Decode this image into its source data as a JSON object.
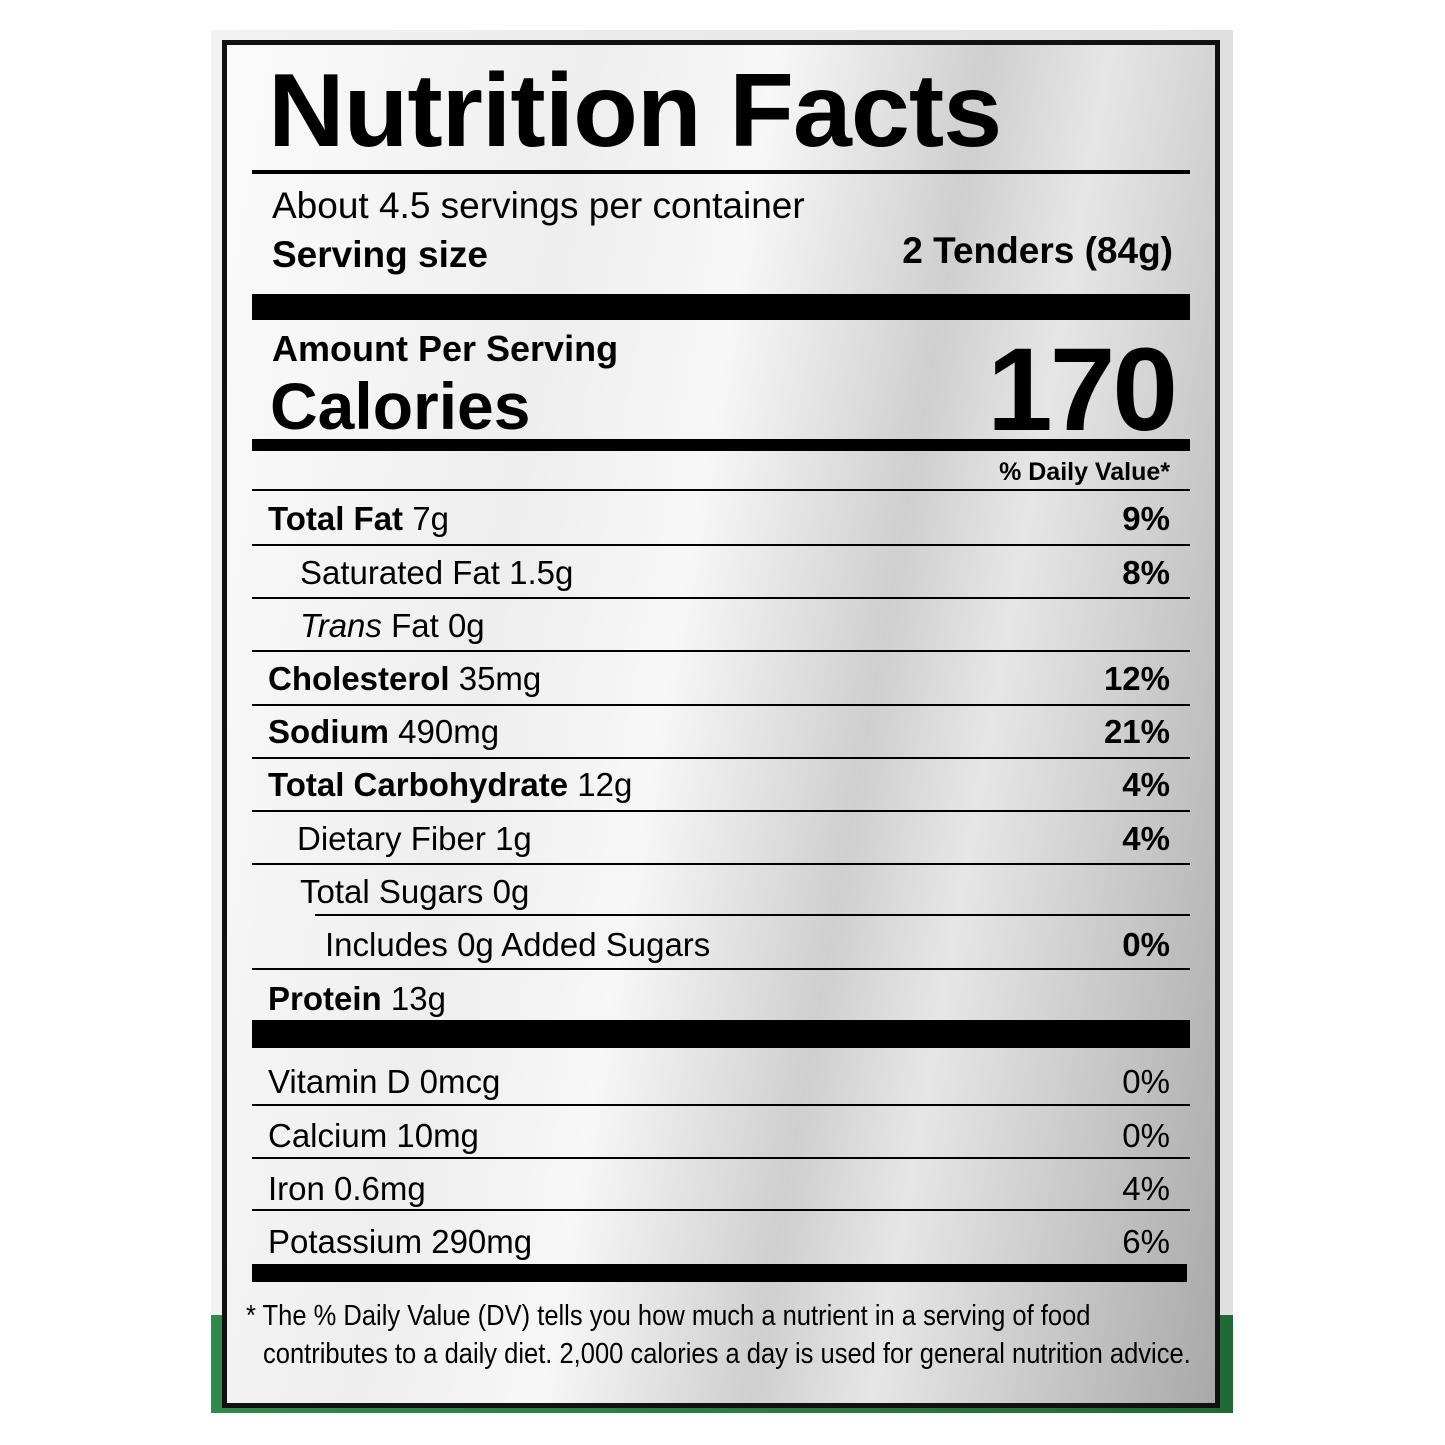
{
  "label": {
    "title": "Nutrition Facts",
    "servings_per_container": "About 4.5 servings per container",
    "serving_size_label": "Serving size",
    "serving_size_value": "2 Tenders (84g)",
    "amount_per_serving": "Amount Per Serving",
    "calories_label": "Calories",
    "calories_value": "170",
    "daily_value_header": "% Daily Value*",
    "nutrients": [
      {
        "name": "Total Fat",
        "amount": "7g",
        "dv": "9%"
      },
      {
        "name": "Saturated Fat",
        "amount": "1.5g",
        "dv": "8%"
      },
      {
        "name_italic": "Trans",
        "name": "Fat",
        "amount": "0g",
        "dv": ""
      },
      {
        "name": "Cholesterol",
        "amount": "35mg",
        "dv": "12%"
      },
      {
        "name": "Sodium",
        "amount": "490mg",
        "dv": "21%"
      },
      {
        "name": "Total Carbohydrate",
        "amount": "12g",
        "dv": "4%"
      },
      {
        "name": "Dietary Fiber",
        "amount": "1g",
        "dv": "4%"
      },
      {
        "name": "Total Sugars",
        "amount": "0g",
        "dv": ""
      },
      {
        "name": "Includes 0g Added Sugars",
        "amount": "",
        "dv": "0%"
      },
      {
        "name": "Protein",
        "amount": "13g",
        "dv": ""
      }
    ],
    "vitamins": [
      {
        "text": "Vitamin D 0mcg",
        "dv": "0%"
      },
      {
        "text": "Calcium 10mg",
        "dv": "0%"
      },
      {
        "text": "Iron 0.6mg",
        "dv": "4%"
      },
      {
        "text": "Potassium 290mg",
        "dv": "6%"
      }
    ],
    "footnote_line1": "* The % Daily Value (DV) tells you how much a nutrient in a serving of food",
    "footnote_line2": "contributes to a daily diet. 2,000 calories a day is used for general nutrition advice."
  },
  "colors": {
    "background_green": "#2e8a48",
    "ink": "#000000"
  }
}
